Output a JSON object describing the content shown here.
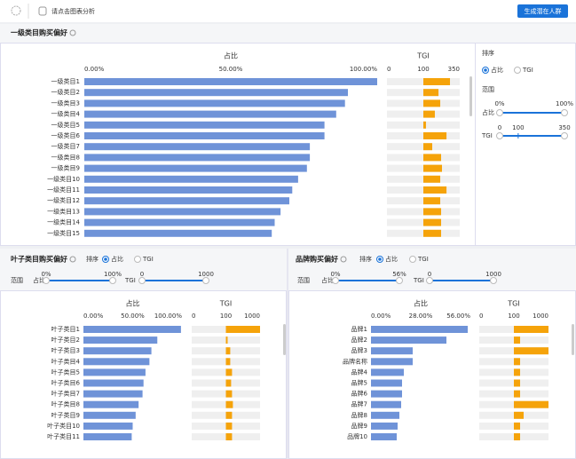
{
  "toolbar": {
    "hint": "请点击图表分析",
    "button": "生成潜在人群"
  },
  "panels": [
    {
      "title": "一级类目购买偏好",
      "sort_label": "排序",
      "sort_options": [
        "占比",
        "TGI"
      ],
      "selected": 0,
      "range_label": "范围",
      "sliders": [
        {
          "label": "占比",
          "ticks": [
            {
              "value": 0,
              "label": "0%"
            },
            {
              "value": 100,
              "label": "100%"
            }
          ]
        },
        {
          "label": "TGI",
          "ticks": [
            0,
            100,
            350
          ]
        }
      ]
    },
    {
      "title": "叶子类目购买偏好",
      "sort_label": "排序",
      "sort_options": [
        "占比",
        "TGI"
      ],
      "selected": 0,
      "range_label": "范围",
      "sliders": [
        {
          "label": "占比",
          "ticks": [
            {
              "value": 0,
              "label": "0%"
            },
            {
              "value": 100,
              "label": "100%"
            }
          ]
        },
        {
          "label": "TGI",
          "ticks": [
            0,
            1000
          ]
        }
      ]
    },
    {
      "title": "品牌购买偏好",
      "sort_label": "排序",
      "sort_options": [
        "占比",
        "TGI"
      ],
      "selected": 0,
      "range_label": "范围",
      "sliders": [
        {
          "label": "占比",
          "ticks": [
            {
              "value": 0,
              "label": "0%"
            },
            {
              "value": 56,
              "label": "56%"
            }
          ]
        },
        {
          "label": "TGI",
          "ticks": [
            0,
            1000
          ]
        }
      ]
    }
  ],
  "chart_data": [
    {
      "type": "bar",
      "title": "占比",
      "color": "#6f93d8",
      "categories": [
        "一级类目1",
        "一级类目2",
        "一级类目3",
        "一级类目4",
        "一级类目5",
        "一级类目6",
        "一级类目7",
        "一级类目8",
        "一级类目9",
        "一级类目10",
        "一级类目11",
        "一级类目12",
        "一级类目13",
        "一级类目14",
        "一级类目15"
      ],
      "values": [
        100,
        90,
        89,
        86,
        82,
        82,
        77,
        77,
        76,
        73,
        71,
        70,
        67,
        65,
        64
      ],
      "xlim": [
        0,
        100
      ],
      "xticks": [
        {
          "value": 0,
          "label": "0.00%"
        },
        {
          "value": 50,
          "label": "50.00%"
        },
        {
          "value": 100,
          "label": "100.00%"
        }
      ]
    },
    {
      "type": "bar",
      "title": "TGI",
      "color": "#f5a30a",
      "baseline": 100,
      "categories": [
        "一级类目1",
        "一级类目2",
        "一级类目3",
        "一级类目4",
        "一级类目5",
        "一级类目6",
        "一级类目7",
        "一级类目8",
        "一级类目9",
        "一级类目10",
        "一级类目11",
        "一级类目12",
        "一级类目13",
        "一级类目14",
        "一级类目15"
      ],
      "values": [
        283,
        204,
        216,
        179,
        118,
        259,
        161,
        222,
        228,
        216,
        259,
        216,
        222,
        222,
        222
      ],
      "xlim": [
        0,
        350
      ],
      "xticks": [
        0,
        100,
        350
      ]
    },
    {
      "type": "bar",
      "title": "占比",
      "color": "#6f93d8",
      "categories": [
        "叶子类目1",
        "叶子类目2",
        "叶子类目3",
        "叶子类目4",
        "叶子类目5",
        "叶子类目6",
        "叶子类目7",
        "叶子类目8",
        "叶子类目9",
        "叶子类目10",
        "叶子类目11"
      ],
      "values": [
        99,
        75,
        69,
        67,
        63,
        61,
        60,
        56,
        53,
        50,
        49
      ],
      "xlim": [
        0,
        100
      ],
      "xticks": [
        {
          "value": 0,
          "label": "0.00%"
        },
        {
          "value": 50,
          "label": "50.00%"
        },
        {
          "value": 100,
          "label": "100.00%"
        }
      ]
    },
    {
      "type": "bar",
      "title": "TGI",
      "color": "#f5a30a",
      "baseline": 100,
      "categories": [
        "叶子类目1",
        "叶子类目2",
        "叶子类目3",
        "叶子类目4",
        "叶子类目5",
        "叶子类目6",
        "叶子类目7",
        "叶子类目8",
        "叶子类目9",
        "叶子类目10",
        "叶子类目11"
      ],
      "values": [
        1000,
        146,
        215,
        215,
        262,
        238,
        262,
        285,
        262,
        262,
        262
      ],
      "xlim": [
        0,
        1000
      ],
      "xticks": [
        0,
        100,
        1000
      ]
    },
    {
      "type": "bar",
      "title": "占比",
      "color": "#6f93d8",
      "categories": [
        "品牌1",
        "品牌2",
        "品牌3",
        "品牌名称",
        "品牌4",
        "品牌5",
        "品牌6",
        "品牌7",
        "品牌8",
        "品牌9",
        "品牌10"
      ],
      "values": [
        54.5,
        42.5,
        23.5,
        23.5,
        18.5,
        17.5,
        17.5,
        17,
        16,
        15,
        14.5
      ],
      "xlim": [
        0,
        56
      ],
      "xticks": [
        {
          "value": 0,
          "label": "0.00%"
        },
        {
          "value": 28,
          "label": "28.00%"
        },
        {
          "value": 56,
          "label": "56.00%"
        }
      ]
    },
    {
      "type": "bar",
      "title": "TGI",
      "color": "#f5a30a",
      "baseline": 100,
      "categories": [
        "品牌1",
        "品牌2",
        "品牌3",
        "品牌名称",
        "品牌4",
        "品牌5",
        "品牌6",
        "品牌7",
        "品牌8",
        "品牌9",
        "品牌10"
      ],
      "values": [
        1000,
        262,
        1000,
        262,
        262,
        262,
        262,
        1000,
        354,
        262,
        262
      ],
      "xlim": [
        0,
        1000
      ],
      "xticks": [
        0,
        100,
        1000
      ]
    }
  ]
}
